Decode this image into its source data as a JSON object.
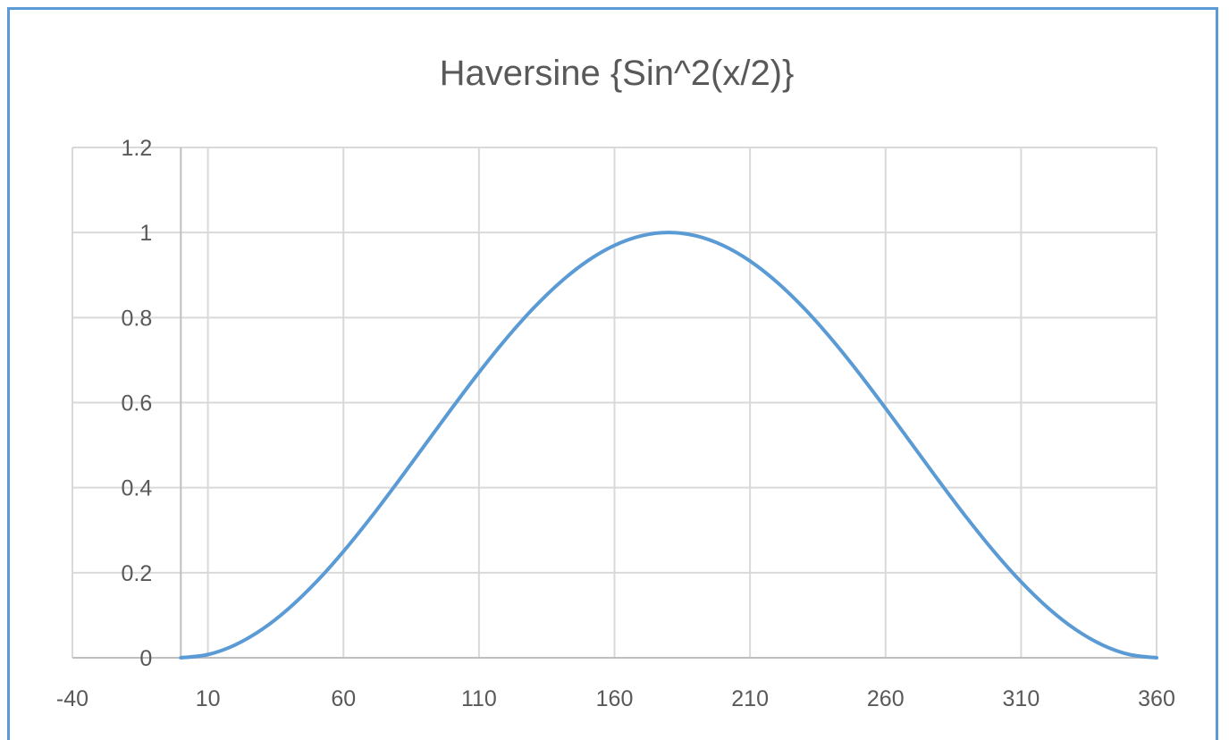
{
  "chart_data": {
    "type": "line",
    "title": "Haversine {Sin^2(x/2)}",
    "xlabel": "",
    "ylabel": "",
    "xlim": [
      -40,
      360
    ],
    "ylim": [
      0,
      1.2
    ],
    "x_ticks": [
      "-40",
      "10",
      "60",
      "110",
      "160",
      "210",
      "260",
      "310",
      "360"
    ],
    "y_ticks": [
      "0",
      "0.2",
      "0.4",
      "0.6",
      "0.8",
      "1",
      "1.2"
    ],
    "grid": true,
    "legend": "none",
    "series": [
      {
        "color": "#5b9bd5",
        "x": [
          0,
          10,
          20,
          30,
          40,
          50,
          60,
          70,
          80,
          90,
          100,
          110,
          120,
          130,
          140,
          150,
          160,
          170,
          180,
          190,
          200,
          210,
          220,
          230,
          240,
          250,
          260,
          270,
          280,
          290,
          300,
          310,
          320,
          330,
          340,
          350,
          360
        ],
        "y": [
          0,
          0.0076,
          0.0302,
          0.067,
          0.117,
          0.1786,
          0.25,
          0.329,
          0.4132,
          0.5,
          0.5868,
          0.671,
          0.75,
          0.8214,
          0.883,
          0.933,
          0.9698,
          0.9924,
          1,
          0.9924,
          0.9698,
          0.933,
          0.883,
          0.8214,
          0.75,
          0.671,
          0.5868,
          0.5,
          0.4132,
          0.329,
          0.25,
          0.1786,
          0.117,
          0.067,
          0.0302,
          0.0076,
          0
        ]
      }
    ]
  }
}
